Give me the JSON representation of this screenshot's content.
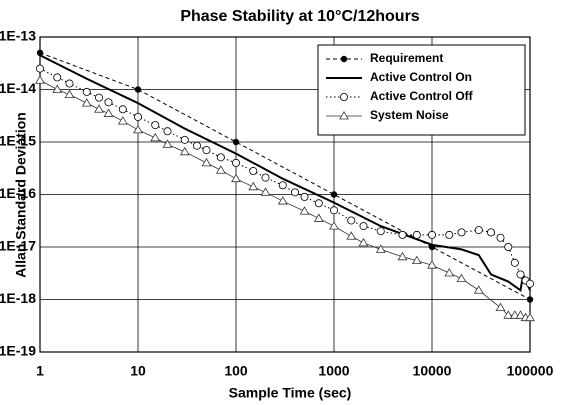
{
  "chart_data": {
    "type": "line",
    "title": "Phase Stability at 10°C/12hours",
    "xlabel": "Sample Time (sec)",
    "ylabel": "Allan Standard Deviation",
    "xscale": "log",
    "yscale": "log",
    "grid": true,
    "legend": "upper right",
    "xlim": [
      1,
      100000
    ],
    "ylim": [
      1e-19,
      1e-13
    ],
    "xticks": [
      1,
      10,
      100,
      1000,
      10000,
      100000
    ],
    "yticks": [
      {
        "value": 1e-19,
        "label": "1E-19"
      },
      {
        "value": 1e-18,
        "label": "1E-18"
      },
      {
        "value": 1e-17,
        "label": "1E-17"
      },
      {
        "value": 1e-16,
        "label": "1E-16"
      },
      {
        "value": 1e-15,
        "label": "1E-15"
      },
      {
        "value": 1e-14,
        "label": "1E-14"
      },
      {
        "value": 1e-13,
        "label": "1E-13"
      }
    ],
    "series": [
      {
        "name": "Requirement",
        "color": "#000000",
        "line_style": "dashed",
        "marker": "filled-circle",
        "x": [
          1,
          10,
          100,
          1000,
          10000,
          100000
        ],
        "values": [
          5e-14,
          1e-14,
          1e-15,
          1e-16,
          1e-17,
          1e-18
        ]
      },
      {
        "name": "Active Control On",
        "color": "#000000",
        "line_style": "solid-thick",
        "marker": "none",
        "x": [
          1,
          3,
          10,
          30,
          100,
          300,
          1000,
          3000,
          10000,
          20000,
          30000,
          40000,
          60000,
          80000,
          85000,
          100000
        ],
        "values": [
          4.5e-14,
          1.6e-14,
          5.5e-15,
          1.8e-15,
          6e-16,
          2e-16,
          7e-17,
          2.5e-17,
          1.1e-17,
          9e-18,
          7e-18,
          3e-18,
          2.2e-18,
          1.5e-18,
          3e-18,
          1.5e-18
        ]
      },
      {
        "name": "Active Control Off",
        "color": "#000000",
        "line_style": "dotted",
        "marker": "open-circle",
        "x": [
          1,
          1.5,
          2,
          3,
          4,
          5,
          7,
          10,
          15,
          20,
          30,
          40,
          50,
          70,
          100,
          150,
          200,
          300,
          400,
          500,
          700,
          1000,
          1500,
          2000,
          3000,
          5000,
          7000,
          10000,
          15000,
          20000,
          30000,
          40000,
          50000,
          60000,
          70000,
          80000,
          90000,
          100000
        ],
        "values": [
          2.5e-14,
          1.7e-14,
          1.3e-14,
          9e-15,
          7e-15,
          5.7e-15,
          4.2e-15,
          3e-15,
          2.1e-15,
          1.6e-15,
          1.1e-15,
          8.5e-16,
          7e-16,
          5.1e-16,
          4e-16,
          2.8e-16,
          2.1e-16,
          1.5e-16,
          1.1e-16,
          9e-17,
          6.8e-17,
          5e-17,
          3.2e-17,
          2.5e-17,
          2e-17,
          1.7e-17,
          1.7e-17,
          1.7e-17,
          1.7e-17,
          1.9e-17,
          2.1e-17,
          1.9e-17,
          1.5e-17,
          1e-17,
          5e-18,
          3e-18,
          2.3e-18,
          2e-18
        ]
      },
      {
        "name": "System Noise",
        "color": "#333333",
        "line_style": "solid",
        "marker": "open-triangle",
        "x": [
          1,
          1.5,
          2,
          3,
          4,
          5,
          7,
          10,
          15,
          20,
          30,
          50,
          70,
          100,
          150,
          200,
          300,
          500,
          700,
          1000,
          1500,
          2000,
          3000,
          5000,
          7000,
          10000,
          15000,
          20000,
          30000,
          50000,
          60000,
          70000,
          80000,
          90000,
          100000
        ],
        "values": [
          1.5e-14,
          1e-14,
          8e-15,
          5.5e-15,
          4.2e-15,
          3.5e-15,
          2.5e-15,
          1.7e-15,
          1.2e-15,
          9e-16,
          6.5e-16,
          4e-16,
          2.9e-16,
          2e-16,
          1.4e-16,
          1.1e-16,
          7.5e-17,
          4.8e-17,
          3.5e-17,
          2.5e-17,
          1.6e-17,
          1.2e-17,
          9e-18,
          6.5e-18,
          5.5e-18,
          4.5e-18,
          3.2e-18,
          2.5e-18,
          1.5e-18,
          7e-19,
          5e-19,
          5e-19,
          5e-19,
          4.5e-19,
          4.5e-19
        ]
      }
    ]
  }
}
